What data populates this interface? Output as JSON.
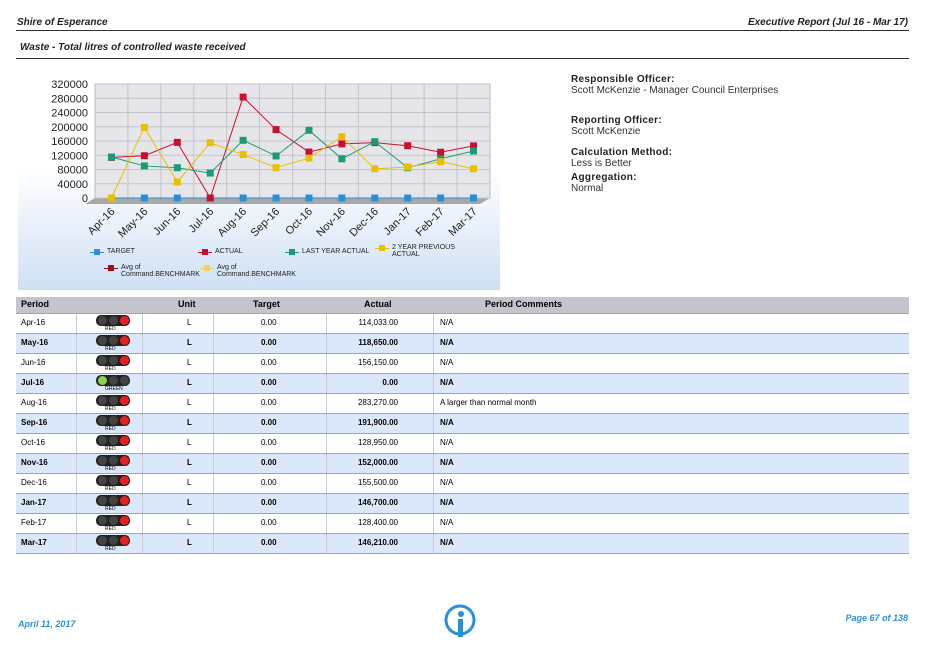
{
  "header": {
    "org": "Shire of Esperance",
    "report": "Executive Report (Jul 16 - Mar 17)",
    "subtitle": "Waste - Total litres of controlled waste received"
  },
  "info": [
    {
      "label": "Responsible Officer:",
      "value": "Scott McKenzie - Manager Council Enterprises"
    },
    {
      "label": "Reporting Officer:",
      "value": "Scott McKenzie"
    },
    {
      "label": "Calculation Method:",
      "value": "Less is Better"
    },
    {
      "label": "Aggregation:",
      "value": "Normal"
    }
  ],
  "chart_data": {
    "type": "line",
    "categories": [
      "Apr-16",
      "May-16",
      "Jun-16",
      "Jul-16",
      "Aug-16",
      "Sep-16",
      "Oct-16",
      "Nov-16",
      "Dec-16",
      "Jan-17",
      "Feb-17",
      "Mar-17"
    ],
    "ylim": [
      0,
      320000
    ],
    "yticks": [
      0,
      40000,
      80000,
      120000,
      160000,
      200000,
      240000,
      280000,
      320000
    ],
    "grid": true,
    "series": [
      {
        "name": "TARGET",
        "color": "#2a8fd8",
        "values": [
          0,
          0,
          0,
          0,
          0,
          0,
          0,
          0,
          0,
          0,
          0,
          0
        ]
      },
      {
        "name": "ACTUAL",
        "color": "#c8102e",
        "values": [
          114033,
          118650,
          156150,
          0,
          283270,
          191900,
          128950,
          152000,
          155500,
          146700,
          128400,
          146210
        ]
      },
      {
        "name": "LAST YEAR ACTUAL",
        "color": "#1a9a7a",
        "values": [
          115000,
          90000,
          85000,
          70000,
          162000,
          118000,
          190000,
          110000,
          158000,
          85000,
          110000,
          132000
        ]
      },
      {
        "name": "2 YEAR PREVIOUS ACTUAL",
        "color": "#e8c000",
        "values": [
          0,
          198000,
          45000,
          155000,
          122000,
          85000,
          112000,
          172000,
          82000,
          87000,
          102000,
          82000
        ]
      },
      {
        "name": "Avg of Command.BENCHMARK",
        "color": "#a01020",
        "values": [
          null,
          null,
          null,
          null,
          null,
          null,
          null,
          null,
          null,
          null,
          null,
          null
        ]
      },
      {
        "name": "Avg of Command.BENCHMARK",
        "color": "#f0d060",
        "values": [
          null,
          null,
          null,
          null,
          null,
          null,
          null,
          null,
          null,
          null,
          null,
          null
        ]
      }
    ]
  },
  "table": {
    "columns": [
      "Period",
      "Unit",
      "Target",
      "Actual",
      "Period Comments"
    ],
    "rows": [
      [
        "Apr-16",
        "RED",
        "L",
        "0.00",
        "114,033.00",
        "N/A"
      ],
      [
        "May-16",
        "RED",
        "L",
        "0.00",
        "118,650.00",
        "N/A"
      ],
      [
        "Jun-16",
        "RED",
        "L",
        "0.00",
        "156,150.00",
        "N/A"
      ],
      [
        "Jul-16",
        "GREEN",
        "L",
        "0.00",
        "0.00",
        "N/A"
      ],
      [
        "Aug-16",
        "RED",
        "L",
        "0.00",
        "283,270.00",
        "A larger than normal month"
      ],
      [
        "Sep-16",
        "RED",
        "L",
        "0.00",
        "191,900.00",
        "N/A"
      ],
      [
        "Oct-16",
        "RED",
        "L",
        "0.00",
        "128,950.00",
        "N/A"
      ],
      [
        "Nov-16",
        "RED",
        "L",
        "0.00",
        "152,000.00",
        "N/A"
      ],
      [
        "Dec-16",
        "RED",
        "L",
        "0.00",
        "155,500.00",
        "N/A"
      ],
      [
        "Jan-17",
        "RED",
        "L",
        "0.00",
        "146,700.00",
        "N/A"
      ],
      [
        "Feb-17",
        "RED",
        "L",
        "0.00",
        "128,400.00",
        "N/A"
      ],
      [
        "Mar-17",
        "RED",
        "L",
        "0.00",
        "146,210.00",
        "N/A"
      ]
    ]
  },
  "footer": {
    "date": "April 11, 2017",
    "page": "Page 67 of 138"
  }
}
